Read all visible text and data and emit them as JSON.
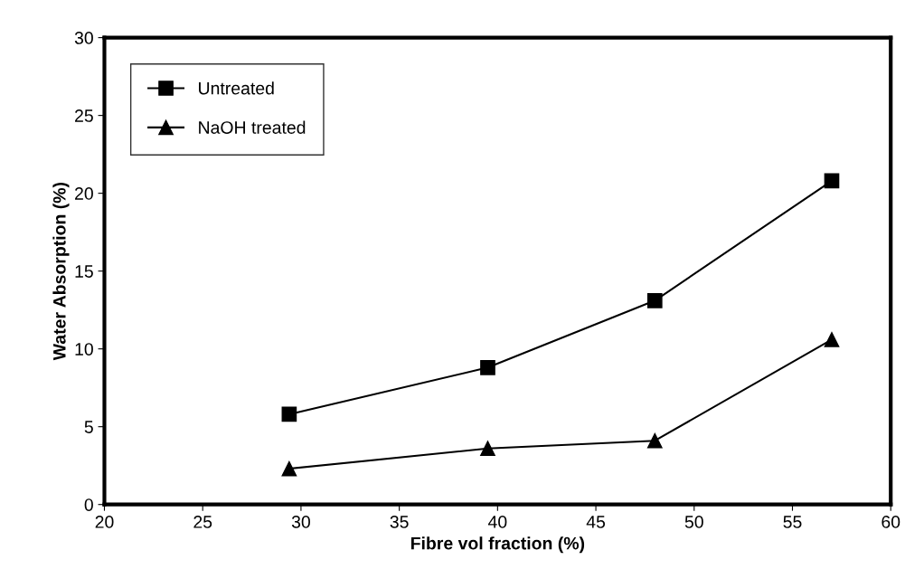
{
  "chart_data": {
    "type": "line",
    "xlabel": "Fibre vol fraction (%)",
    "ylabel": "Water Absorption (%)",
    "x": [
      29.4,
      39.5,
      48.0,
      57.0
    ],
    "series": [
      {
        "name": "Untreated",
        "color": "#000000",
        "marker": "square",
        "values": [
          5.8,
          8.8,
          13.1,
          20.8
        ]
      },
      {
        "name": "NaOH treated",
        "color": "#000000",
        "marker": "triangle",
        "values": [
          2.3,
          3.6,
          4.1,
          10.6
        ]
      }
    ],
    "xlim": [
      20,
      60
    ],
    "xticks": [
      20,
      25,
      30,
      35,
      40,
      45,
      50,
      55,
      60
    ],
    "ylim": [
      0,
      30
    ],
    "yticks": [
      0,
      5,
      10,
      15,
      20,
      25,
      30
    ],
    "grid": false,
    "legend": "top left",
    "line_style": "solid"
  }
}
